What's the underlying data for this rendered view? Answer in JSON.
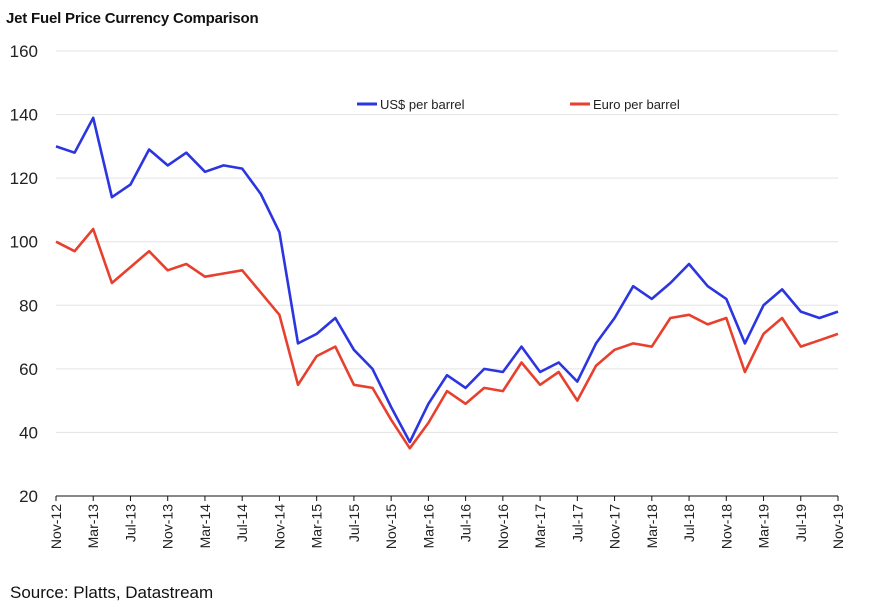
{
  "title": "Jet Fuel Price Currency Comparison",
  "source": "Source: Platts, Datastream",
  "chart_data": {
    "type": "line",
    "title": "Jet Fuel Price Currency Comparison",
    "xlabel": "",
    "ylabel": "",
    "ylim": [
      20,
      160
    ],
    "yticks": [
      20,
      40,
      60,
      80,
      100,
      120,
      140,
      160
    ],
    "grid": true,
    "legend_position": "top-center",
    "x_tick_labels": [
      "Nov-12",
      "Mar-13",
      "Jul-13",
      "Nov-13",
      "Mar-14",
      "Jul-14",
      "Nov-14",
      "Mar-15",
      "Jul-15",
      "Nov-15",
      "Mar-16",
      "Jul-16",
      "Nov-16",
      "Mar-17",
      "Jul-17",
      "Nov-17",
      "Mar-18",
      "Jul-18",
      "Nov-18",
      "Mar-19",
      "Jul-19",
      "Nov-19"
    ],
    "x": [
      "Nov-12",
      "Jan-13",
      "Mar-13",
      "May-13",
      "Jul-13",
      "Sep-13",
      "Nov-13",
      "Jan-14",
      "Mar-14",
      "May-14",
      "Jul-14",
      "Sep-14",
      "Nov-14",
      "Jan-15",
      "Mar-15",
      "May-15",
      "Jul-15",
      "Sep-15",
      "Nov-15",
      "Jan-16",
      "Mar-16",
      "May-16",
      "Jul-16",
      "Sep-16",
      "Nov-16",
      "Jan-17",
      "Mar-17",
      "May-17",
      "Jul-17",
      "Sep-17",
      "Nov-17",
      "Jan-18",
      "Mar-18",
      "May-18",
      "Jul-18",
      "Sep-18",
      "Nov-18",
      "Jan-19",
      "Mar-19",
      "May-19",
      "Jul-19",
      "Sep-19",
      "Nov-19"
    ],
    "series": [
      {
        "name": "US$ per barrel",
        "color": "#2b35e0",
        "values": [
          130,
          128,
          139,
          114,
          118,
          129,
          124,
          128,
          122,
          124,
          123,
          115,
          103,
          68,
          71,
          76,
          66,
          60,
          48,
          37,
          49,
          58,
          54,
          60,
          59,
          67,
          59,
          62,
          56,
          68,
          76,
          86,
          82,
          87,
          93,
          86,
          82,
          68,
          80,
          85,
          78,
          76,
          78
        ]
      },
      {
        "name": "Euro per barrel",
        "color": "#e8402e",
        "values": [
          100,
          97,
          104,
          87,
          92,
          97,
          91,
          93,
          89,
          90,
          91,
          84,
          77,
          55,
          64,
          67,
          55,
          54,
          44,
          35,
          43,
          53,
          49,
          54,
          53,
          62,
          55,
          59,
          50,
          61,
          66,
          68,
          67,
          76,
          77,
          74,
          76,
          59,
          71,
          76,
          67,
          69,
          71
        ]
      }
    ]
  }
}
